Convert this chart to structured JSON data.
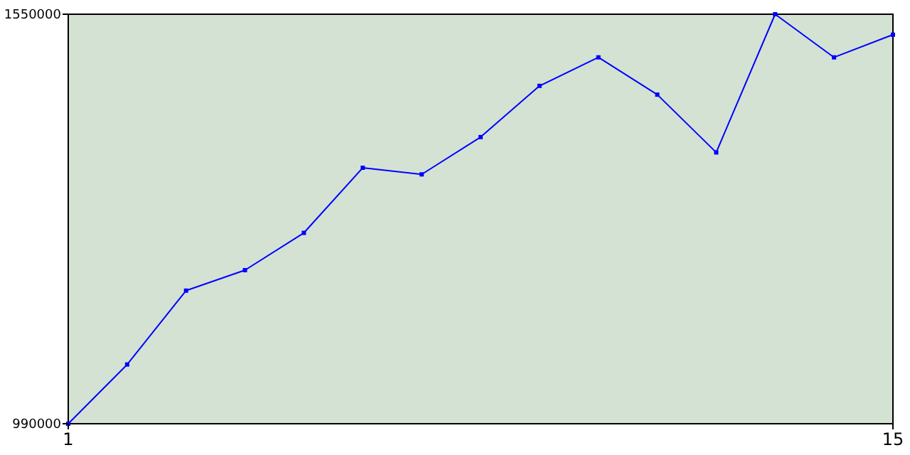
{
  "chart_data": {
    "type": "line",
    "x": [
      1,
      2,
      3,
      4,
      5,
      6,
      7,
      8,
      9,
      10,
      11,
      12,
      13,
      14,
      15
    ],
    "series": [
      {
        "color": "#0000ff",
        "values": [
          990000,
          1071000,
          1172000,
          1200000,
          1251000,
          1340000,
          1331000,
          1382000,
          1452000,
          1491000,
          1440000,
          1361000,
          1550000,
          1491000,
          1522000
        ]
      }
    ],
    "xlim": [
      1,
      15
    ],
    "xticks": [
      1,
      15
    ],
    "ylim": [
      990000,
      1550000
    ],
    "yticks": [
      990000,
      1550000
    ],
    "marker": "square",
    "line_style": "solid"
  }
}
